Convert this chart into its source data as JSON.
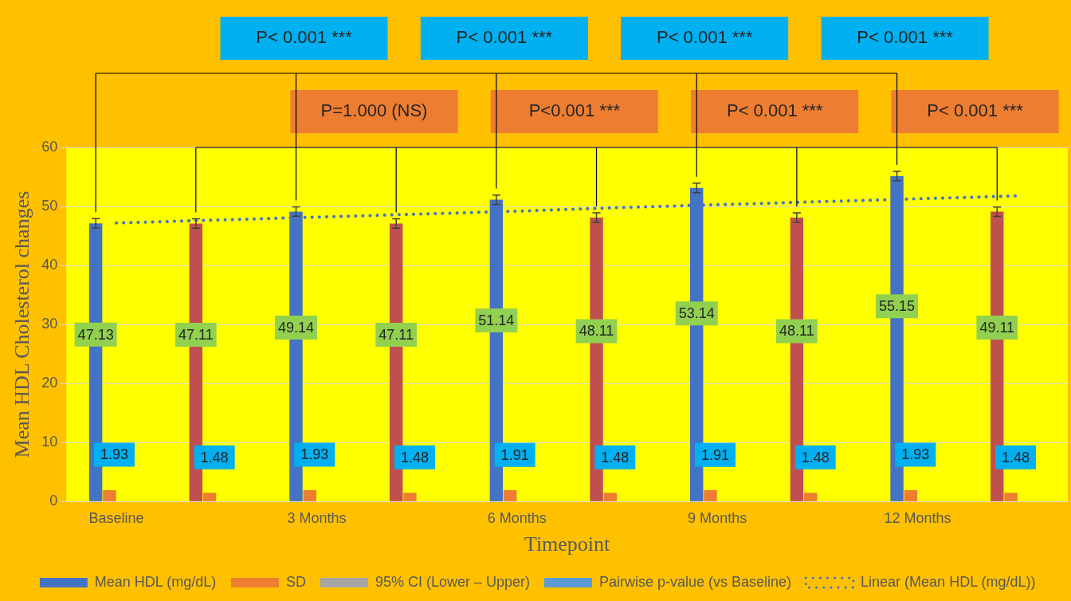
{
  "chart_data": {
    "type": "bar",
    "xlabel": "Timepoint",
    "ylabel": "Mean HDL Cholesterol changes",
    "categories": [
      "Baseline",
      null,
      "3 Months",
      null,
      "6 Months",
      null,
      "9 Months",
      null,
      "12 Months",
      null
    ],
    "ylim": [
      0,
      60
    ],
    "yticks": [
      0,
      10,
      20,
      30,
      40,
      50,
      60
    ],
    "grid": "y",
    "legend": "bottom",
    "series": [
      {
        "name": "Mean HDL (mg/dL)",
        "color": "#4472c4",
        "colors": [
          "#4472c4",
          "#c0504d",
          "#4472c4",
          "#c0504d",
          "#4472c4",
          "#c0504d",
          "#4472c4",
          "#c0504d",
          "#4472c4",
          "#c0504d"
        ],
        "values": [
          47.13,
          47.11,
          49.14,
          47.11,
          51.14,
          48.11,
          53.14,
          48.11,
          55.15,
          49.11
        ],
        "errors": [
          0.8,
          0.8,
          0.8,
          0.8,
          0.8,
          0.8,
          0.8,
          0.8,
          0.8,
          0.8
        ],
        "value_labels": [
          "47.13",
          "47.11",
          "49.14",
          "47.11",
          "51.14",
          "48.11",
          "53.14",
          "48.11",
          "55.15",
          "49.11"
        ]
      },
      {
        "name": "SD",
        "color": "#ed7d31",
        "values": [
          1.93,
          1.48,
          1.93,
          1.48,
          1.91,
          1.48,
          1.91,
          1.48,
          1.93,
          1.48
        ],
        "value_labels": [
          "1.93",
          "1.48",
          "1.93",
          "1.48",
          "1.91",
          "1.48",
          "1.91",
          "1.48",
          "1.93",
          "1.48"
        ]
      },
      {
        "name": "95% CI (Lower – Upper)",
        "color": "#a5a5a5",
        "values": [
          null,
          null,
          null,
          null,
          null,
          null,
          null,
          null,
          null,
          null
        ]
      },
      {
        "name": "Pairwise p-value (vs Baseline)",
        "color": "#5b9bd5",
        "values": [
          null,
          null,
          null,
          null,
          null,
          null,
          null,
          null,
          null,
          null
        ]
      },
      {
        "name": "Linear (Mean HDL (mg/dL))",
        "type": "line",
        "color": "#4472c4",
        "line_style": "dotted",
        "marker": "none",
        "values": [
          47.2,
          47.7,
          48.2,
          48.7,
          49.2,
          49.8,
          50.3,
          50.8,
          51.3,
          51.8
        ]
      }
    ],
    "annotations": [
      "P< 0.001 ***",
      "P< 0.001 ***",
      "P< 0.001 ***",
      "P< 0.001 ***",
      "P=1.000 (NS)",
      "P<0.001 ***",
      "P< 0.001 ***",
      "P< 0.001 ***"
    ]
  }
}
